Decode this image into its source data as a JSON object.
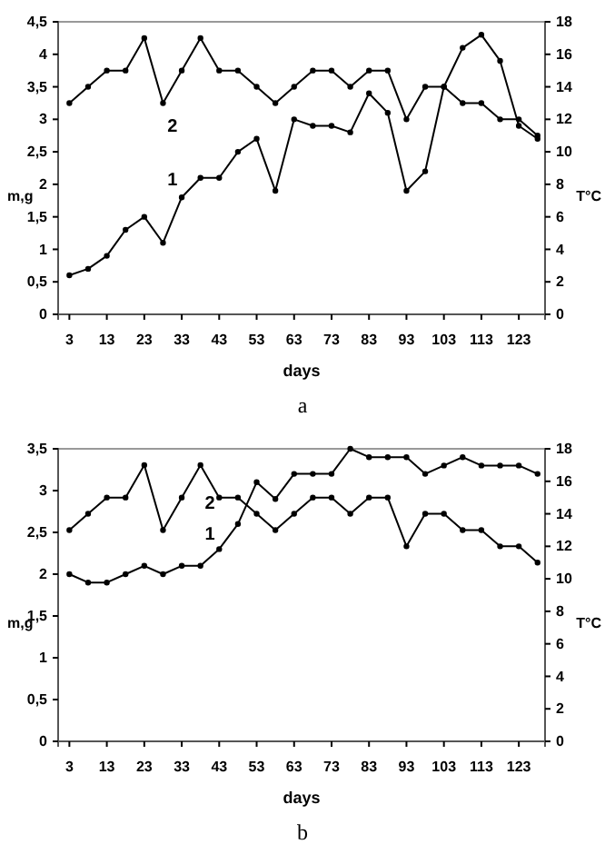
{
  "chart_data": [
    {
      "type": "line",
      "xlabel": "days",
      "ylabel": "m,g",
      "y2label": "T°C",
      "annotations": [
        "a"
      ],
      "marker": "circle",
      "line_style": "solid",
      "grid": false,
      "x": [
        3,
        8,
        13,
        18,
        23,
        28,
        33,
        38,
        43,
        48,
        53,
        58,
        63,
        68,
        73,
        78,
        83,
        88,
        93,
        98,
        103,
        108,
        113,
        118,
        123,
        128
      ],
      "xlim": [
        0,
        130
      ],
      "xticks": [
        3,
        13,
        23,
        33,
        43,
        53,
        63,
        73,
        83,
        93,
        103,
        113,
        123
      ],
      "ylim": [
        0,
        4.5
      ],
      "yticks": [
        {
          "value": 0,
          "label": "0"
        },
        {
          "value": 0.5,
          "label": "0,5"
        },
        {
          "value": 1,
          "label": "1"
        },
        {
          "value": 1.5,
          "label": "1,5"
        },
        {
          "value": 2,
          "label": "2"
        },
        {
          "value": 2.5,
          "label": "2,5"
        },
        {
          "value": 3,
          "label": "3"
        },
        {
          "value": 3.5,
          "label": "3,5"
        },
        {
          "value": 4,
          "label": "4"
        },
        {
          "value": 4.5,
          "label": "4,5"
        }
      ],
      "y2lim": [
        0,
        18
      ],
      "y2ticks": [
        0,
        2,
        4,
        6,
        8,
        10,
        12,
        14,
        16,
        18
      ],
      "series": [
        {
          "name": "1",
          "color": "#000000",
          "values": [
            0.6,
            0.7,
            0.9,
            1.3,
            1.5,
            1.1,
            1.8,
            2.1,
            2.1,
            2.5,
            2.7,
            1.9,
            3.0,
            2.9,
            2.9,
            2.8,
            3.4,
            3.1,
            1.9,
            2.2,
            3.5,
            4.1,
            4.3,
            3.9,
            2.9,
            2.7
          ]
        },
        {
          "name": "2",
          "color": "#000000",
          "axis": "y2",
          "values": [
            13,
            14,
            15,
            15,
            17,
            13,
            15,
            17,
            15,
            15,
            14,
            13,
            14,
            15,
            15,
            14,
            15,
            15,
            12,
            14,
            14,
            13,
            13,
            12,
            12,
            11
          ]
        }
      ]
    },
    {
      "type": "line",
      "xlabel": "days",
      "ylabel": "m,g",
      "y2label": "T°C",
      "annotations": [
        "b"
      ],
      "marker": "circle",
      "line_style": "solid",
      "grid": false,
      "x": [
        3,
        8,
        13,
        18,
        23,
        28,
        33,
        38,
        43,
        48,
        53,
        58,
        63,
        68,
        73,
        78,
        83,
        88,
        93,
        98,
        103,
        108,
        113,
        118,
        123,
        128
      ],
      "xlim": [
        0,
        130
      ],
      "xticks": [
        3,
        13,
        23,
        33,
        43,
        53,
        63,
        73,
        83,
        93,
        103,
        113,
        123
      ],
      "ylim": [
        0,
        3.5
      ],
      "yticks": [
        {
          "value": 0,
          "label": "0"
        },
        {
          "value": 0.5,
          "label": "0,5"
        },
        {
          "value": 1,
          "label": "1"
        },
        {
          "value": 1.5,
          "label": "1,5"
        },
        {
          "value": 2,
          "label": "2"
        },
        {
          "value": 2.5,
          "label": "2,5"
        },
        {
          "value": 3,
          "label": "3"
        },
        {
          "value": 3.5,
          "label": "3,5"
        }
      ],
      "y2lim": [
        0,
        18
      ],
      "y2ticks": [
        0,
        2,
        4,
        6,
        8,
        10,
        12,
        14,
        16,
        18
      ],
      "series": [
        {
          "name": "1",
          "color": "#000000",
          "values": [
            2.0,
            1.9,
            1.9,
            2.0,
            2.1,
            2.0,
            2.1,
            2.1,
            2.3,
            2.6,
            3.1,
            2.9,
            3.2,
            3.2,
            3.2,
            3.5,
            3.4,
            3.4,
            3.4,
            3.2,
            3.3,
            3.4,
            3.3,
            3.3,
            3.3,
            3.2
          ]
        },
        {
          "name": "2",
          "color": "#000000",
          "axis": "y2",
          "values": [
            13,
            14,
            15,
            15,
            17,
            13,
            15,
            17,
            15,
            15,
            14,
            13,
            14,
            15,
            15,
            14,
            15,
            15,
            12,
            14,
            14,
            13,
            13,
            12,
            12,
            11
          ]
        }
      ]
    }
  ]
}
